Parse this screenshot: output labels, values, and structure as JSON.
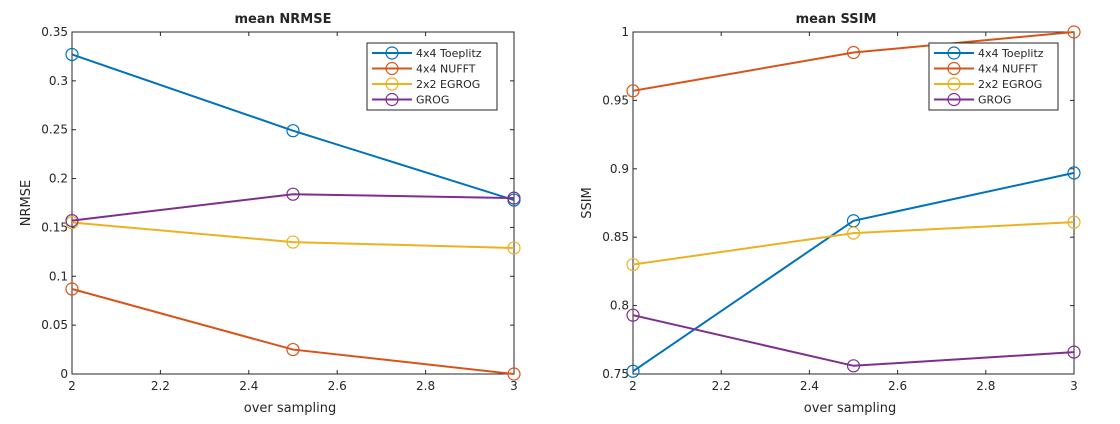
{
  "chart_data": [
    {
      "type": "line",
      "title": "mean NRMSE",
      "xlabel": "over sampling",
      "ylabel": "NRMSE",
      "xlim": [
        2,
        3
      ],
      "ylim": [
        0,
        0.35
      ],
      "xticks": [
        2,
        2.2,
        2.4,
        2.6,
        2.8,
        3
      ],
      "xtick_labels": [
        "2",
        "2.2",
        "2.4",
        "2.6",
        "2.8",
        "3"
      ],
      "yticks": [
        0,
        0.05,
        0.1,
        0.15,
        0.2,
        0.25,
        0.3,
        0.35
      ],
      "ytick_labels": [
        "0",
        "0.05",
        "0.1",
        "0.15",
        "0.2",
        "0.25",
        "0.3",
        "0.35"
      ],
      "grid": false,
      "legend_position": "top-right",
      "x": [
        2,
        2.5,
        3
      ],
      "series": [
        {
          "name": "4x4 Toeplitz",
          "color": "#0072BD",
          "values": [
            0.327,
            0.249,
            0.178
          ]
        },
        {
          "name": "4x4 NUFFT",
          "color": "#D95319",
          "values": [
            0.087,
            0.025,
            0.0
          ]
        },
        {
          "name": "2x2 EGROG",
          "color": "#EDB120",
          "values": [
            0.155,
            0.135,
            0.129
          ]
        },
        {
          "name": "GROG",
          "color": "#7E2F8E",
          "values": [
            0.157,
            0.184,
            0.18
          ]
        }
      ]
    },
    {
      "type": "line",
      "title": "mean SSIM",
      "xlabel": "over sampling",
      "ylabel": "SSIM",
      "xlim": [
        2,
        3
      ],
      "ylim": [
        0.75,
        1
      ],
      "xticks": [
        2,
        2.2,
        2.4,
        2.6,
        2.8,
        3
      ],
      "xtick_labels": [
        "2",
        "2.2",
        "2.4",
        "2.6",
        "2.8",
        "3"
      ],
      "yticks": [
        0.75,
        0.8,
        0.85,
        0.9,
        0.95,
        1
      ],
      "ytick_labels": [
        "0.75",
        "0.8",
        "0.85",
        "0.9",
        "0.95",
        "1"
      ],
      "grid": false,
      "legend_position": "top-right",
      "x": [
        2,
        2.5,
        3
      ],
      "series": [
        {
          "name": "4x4 Toeplitz",
          "color": "#0072BD",
          "values": [
            0.752,
            0.862,
            0.897
          ]
        },
        {
          "name": "4x4 NUFFT",
          "color": "#D95319",
          "values": [
            0.957,
            0.985,
            1.0
          ]
        },
        {
          "name": "2x2 EGROG",
          "color": "#EDB120",
          "values": [
            0.83,
            0.853,
            0.861
          ]
        },
        {
          "name": "GROG",
          "color": "#7E2F8E",
          "values": [
            0.793,
            0.756,
            0.766
          ]
        }
      ]
    }
  ]
}
